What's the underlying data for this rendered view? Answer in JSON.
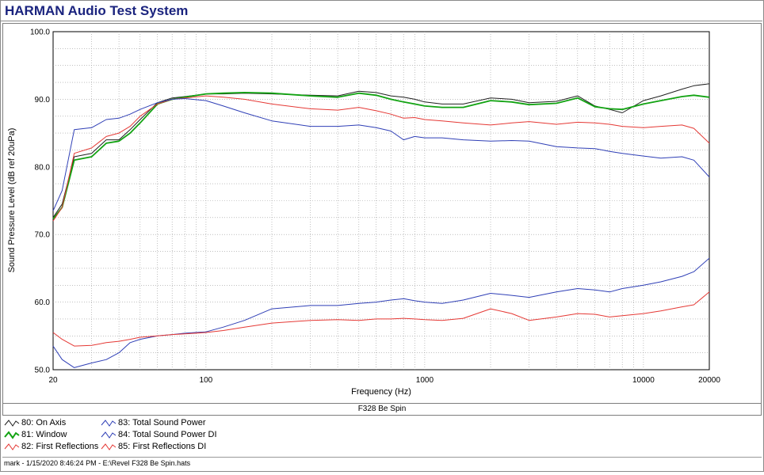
{
  "app": {
    "title": "HARMAN Audio Test System"
  },
  "chart_data": {
    "type": "line",
    "xscale": "log",
    "xlim": [
      20,
      20000
    ],
    "ylim": [
      50,
      100
    ],
    "xlabel": "Frequency (Hz)",
    "ylabel": "Sound Pressure Level (dB ref 20uPa)",
    "x_ticks": [
      20,
      100,
      1000,
      10000,
      20000
    ],
    "x_tick_labels": [
      "20",
      "100",
      "1000",
      "10000",
      "20000"
    ],
    "y_ticks": [
      50,
      60,
      70,
      80,
      90,
      100
    ],
    "y_tick_labels": [
      "50.0",
      "60.0",
      "70.0",
      "80.0",
      "90.0",
      "100.0"
    ],
    "grid": true,
    "legend_position": "bottom",
    "series": [
      {
        "name": "80: On Axis",
        "color": "#202020",
        "x": [
          20,
          22,
          25,
          30,
          35,
          40,
          45,
          50,
          60,
          70,
          80,
          100,
          120,
          150,
          200,
          300,
          400,
          500,
          600,
          700,
          800,
          900,
          1000,
          1200,
          1500,
          2000,
          2500,
          3000,
          4000,
          5000,
          6000,
          7000,
          8000,
          10000,
          12000,
          15000,
          17000,
          20000
        ],
        "y": [
          72.5,
          74.5,
          81.5,
          82.0,
          84.0,
          84.0,
          85.5,
          87.0,
          89.5,
          90.2,
          90.4,
          90.8,
          90.8,
          90.9,
          90.8,
          90.6,
          90.5,
          91.2,
          91.0,
          90.5,
          90.3,
          90.0,
          89.6,
          89.3,
          89.3,
          90.2,
          90.0,
          89.5,
          89.7,
          90.5,
          89.0,
          88.5,
          88.0,
          89.8,
          90.5,
          91.5,
          92.0,
          92.3
        ]
      },
      {
        "name": "81: Window",
        "color": "#12a312",
        "x": [
          20,
          22,
          25,
          30,
          35,
          40,
          45,
          50,
          60,
          70,
          80,
          100,
          120,
          150,
          200,
          300,
          400,
          500,
          600,
          700,
          800,
          900,
          1000,
          1200,
          1500,
          2000,
          2500,
          3000,
          4000,
          5000,
          6000,
          7000,
          8000,
          10000,
          12000,
          15000,
          17000,
          20000
        ],
        "y": [
          72.3,
          74.0,
          81.0,
          81.5,
          83.5,
          83.8,
          85.0,
          86.5,
          89.3,
          90.0,
          90.3,
          90.8,
          90.9,
          91.0,
          90.9,
          90.5,
          90.3,
          90.9,
          90.6,
          90.0,
          89.6,
          89.3,
          89.0,
          88.8,
          88.8,
          89.8,
          89.6,
          89.2,
          89.4,
          90.2,
          88.9,
          88.6,
          88.5,
          89.3,
          89.8,
          90.4,
          90.6,
          90.3
        ]
      },
      {
        "name": "82: First Reflections",
        "color": "#e53935",
        "x": [
          20,
          22,
          25,
          30,
          35,
          40,
          45,
          50,
          60,
          70,
          80,
          100,
          120,
          150,
          200,
          300,
          400,
          500,
          600,
          700,
          800,
          900,
          1000,
          1200,
          1500,
          2000,
          2500,
          3000,
          4000,
          5000,
          6000,
          7000,
          8000,
          10000,
          12000,
          15000,
          17000,
          20000
        ],
        "y": [
          72.0,
          74.0,
          82.0,
          82.8,
          84.5,
          85.0,
          86.0,
          87.5,
          89.3,
          90.0,
          90.2,
          90.5,
          90.3,
          90.0,
          89.3,
          88.6,
          88.4,
          88.8,
          88.3,
          87.8,
          87.2,
          87.3,
          87.0,
          86.8,
          86.5,
          86.2,
          86.5,
          86.7,
          86.3,
          86.6,
          86.5,
          86.3,
          86.0,
          85.8,
          86.0,
          86.2,
          85.7,
          83.5
        ]
      },
      {
        "name": "83: Total Sound Power",
        "color": "#2f3fb6",
        "x": [
          20,
          22,
          25,
          30,
          35,
          40,
          45,
          50,
          60,
          70,
          80,
          100,
          120,
          150,
          200,
          300,
          400,
          500,
          600,
          700,
          800,
          900,
          1000,
          1200,
          1500,
          2000,
          2500,
          3000,
          4000,
          5000,
          6000,
          7000,
          8000,
          10000,
          12000,
          15000,
          17000,
          20000
        ],
        "y": [
          73.5,
          76.5,
          85.5,
          85.8,
          87.0,
          87.2,
          87.8,
          88.5,
          89.5,
          90.0,
          90.1,
          89.8,
          89.0,
          88.0,
          86.8,
          86.0,
          86.0,
          86.2,
          85.8,
          85.3,
          84.0,
          84.5,
          84.3,
          84.3,
          84.0,
          83.8,
          83.9,
          83.8,
          83.0,
          82.8,
          82.7,
          82.3,
          82.0,
          81.6,
          81.3,
          81.5,
          81.0,
          78.5
        ]
      },
      {
        "name": "84: Total Sound Power DI",
        "color": "#2f3fb6",
        "x": [
          20,
          22,
          25,
          30,
          35,
          40,
          45,
          50,
          60,
          70,
          80,
          100,
          120,
          150,
          200,
          300,
          400,
          500,
          600,
          700,
          800,
          900,
          1000,
          1200,
          1500,
          2000,
          2500,
          3000,
          4000,
          5000,
          6000,
          7000,
          8000,
          10000,
          12000,
          15000,
          17000,
          20000
        ],
        "y": [
          53.5,
          51.5,
          50.3,
          51.0,
          51.5,
          52.5,
          54.0,
          54.5,
          55.0,
          55.2,
          55.4,
          55.6,
          56.3,
          57.3,
          59.0,
          59.5,
          59.5,
          59.8,
          60.0,
          60.3,
          60.5,
          60.2,
          60.0,
          59.8,
          60.3,
          61.3,
          61.0,
          60.7,
          61.5,
          62.0,
          61.8,
          61.5,
          62.0,
          62.5,
          63.0,
          63.8,
          64.5,
          66.5
        ]
      },
      {
        "name": "85: First Reflections DI",
        "color": "#e53935",
        "x": [
          20,
          22,
          25,
          30,
          35,
          40,
          45,
          50,
          60,
          70,
          80,
          100,
          120,
          150,
          200,
          300,
          400,
          500,
          600,
          700,
          800,
          900,
          1000,
          1200,
          1500,
          2000,
          2500,
          3000,
          4000,
          5000,
          6000,
          7000,
          8000,
          10000,
          12000,
          15000,
          17000,
          20000
        ],
        "y": [
          55.5,
          54.5,
          53.5,
          53.6,
          54.0,
          54.2,
          54.5,
          54.8,
          55.0,
          55.2,
          55.3,
          55.5,
          55.8,
          56.3,
          56.9,
          57.3,
          57.4,
          57.3,
          57.5,
          57.5,
          57.6,
          57.5,
          57.4,
          57.3,
          57.6,
          59.0,
          58.3,
          57.3,
          57.8,
          58.3,
          58.2,
          57.8,
          58.0,
          58.3,
          58.7,
          59.3,
          59.6,
          61.5
        ]
      }
    ]
  },
  "subtitle": "F328 Be Spin",
  "status": "mark - 1/15/2020 8:46:24 PM - E:\\Revel F328 Be Spin.hats"
}
